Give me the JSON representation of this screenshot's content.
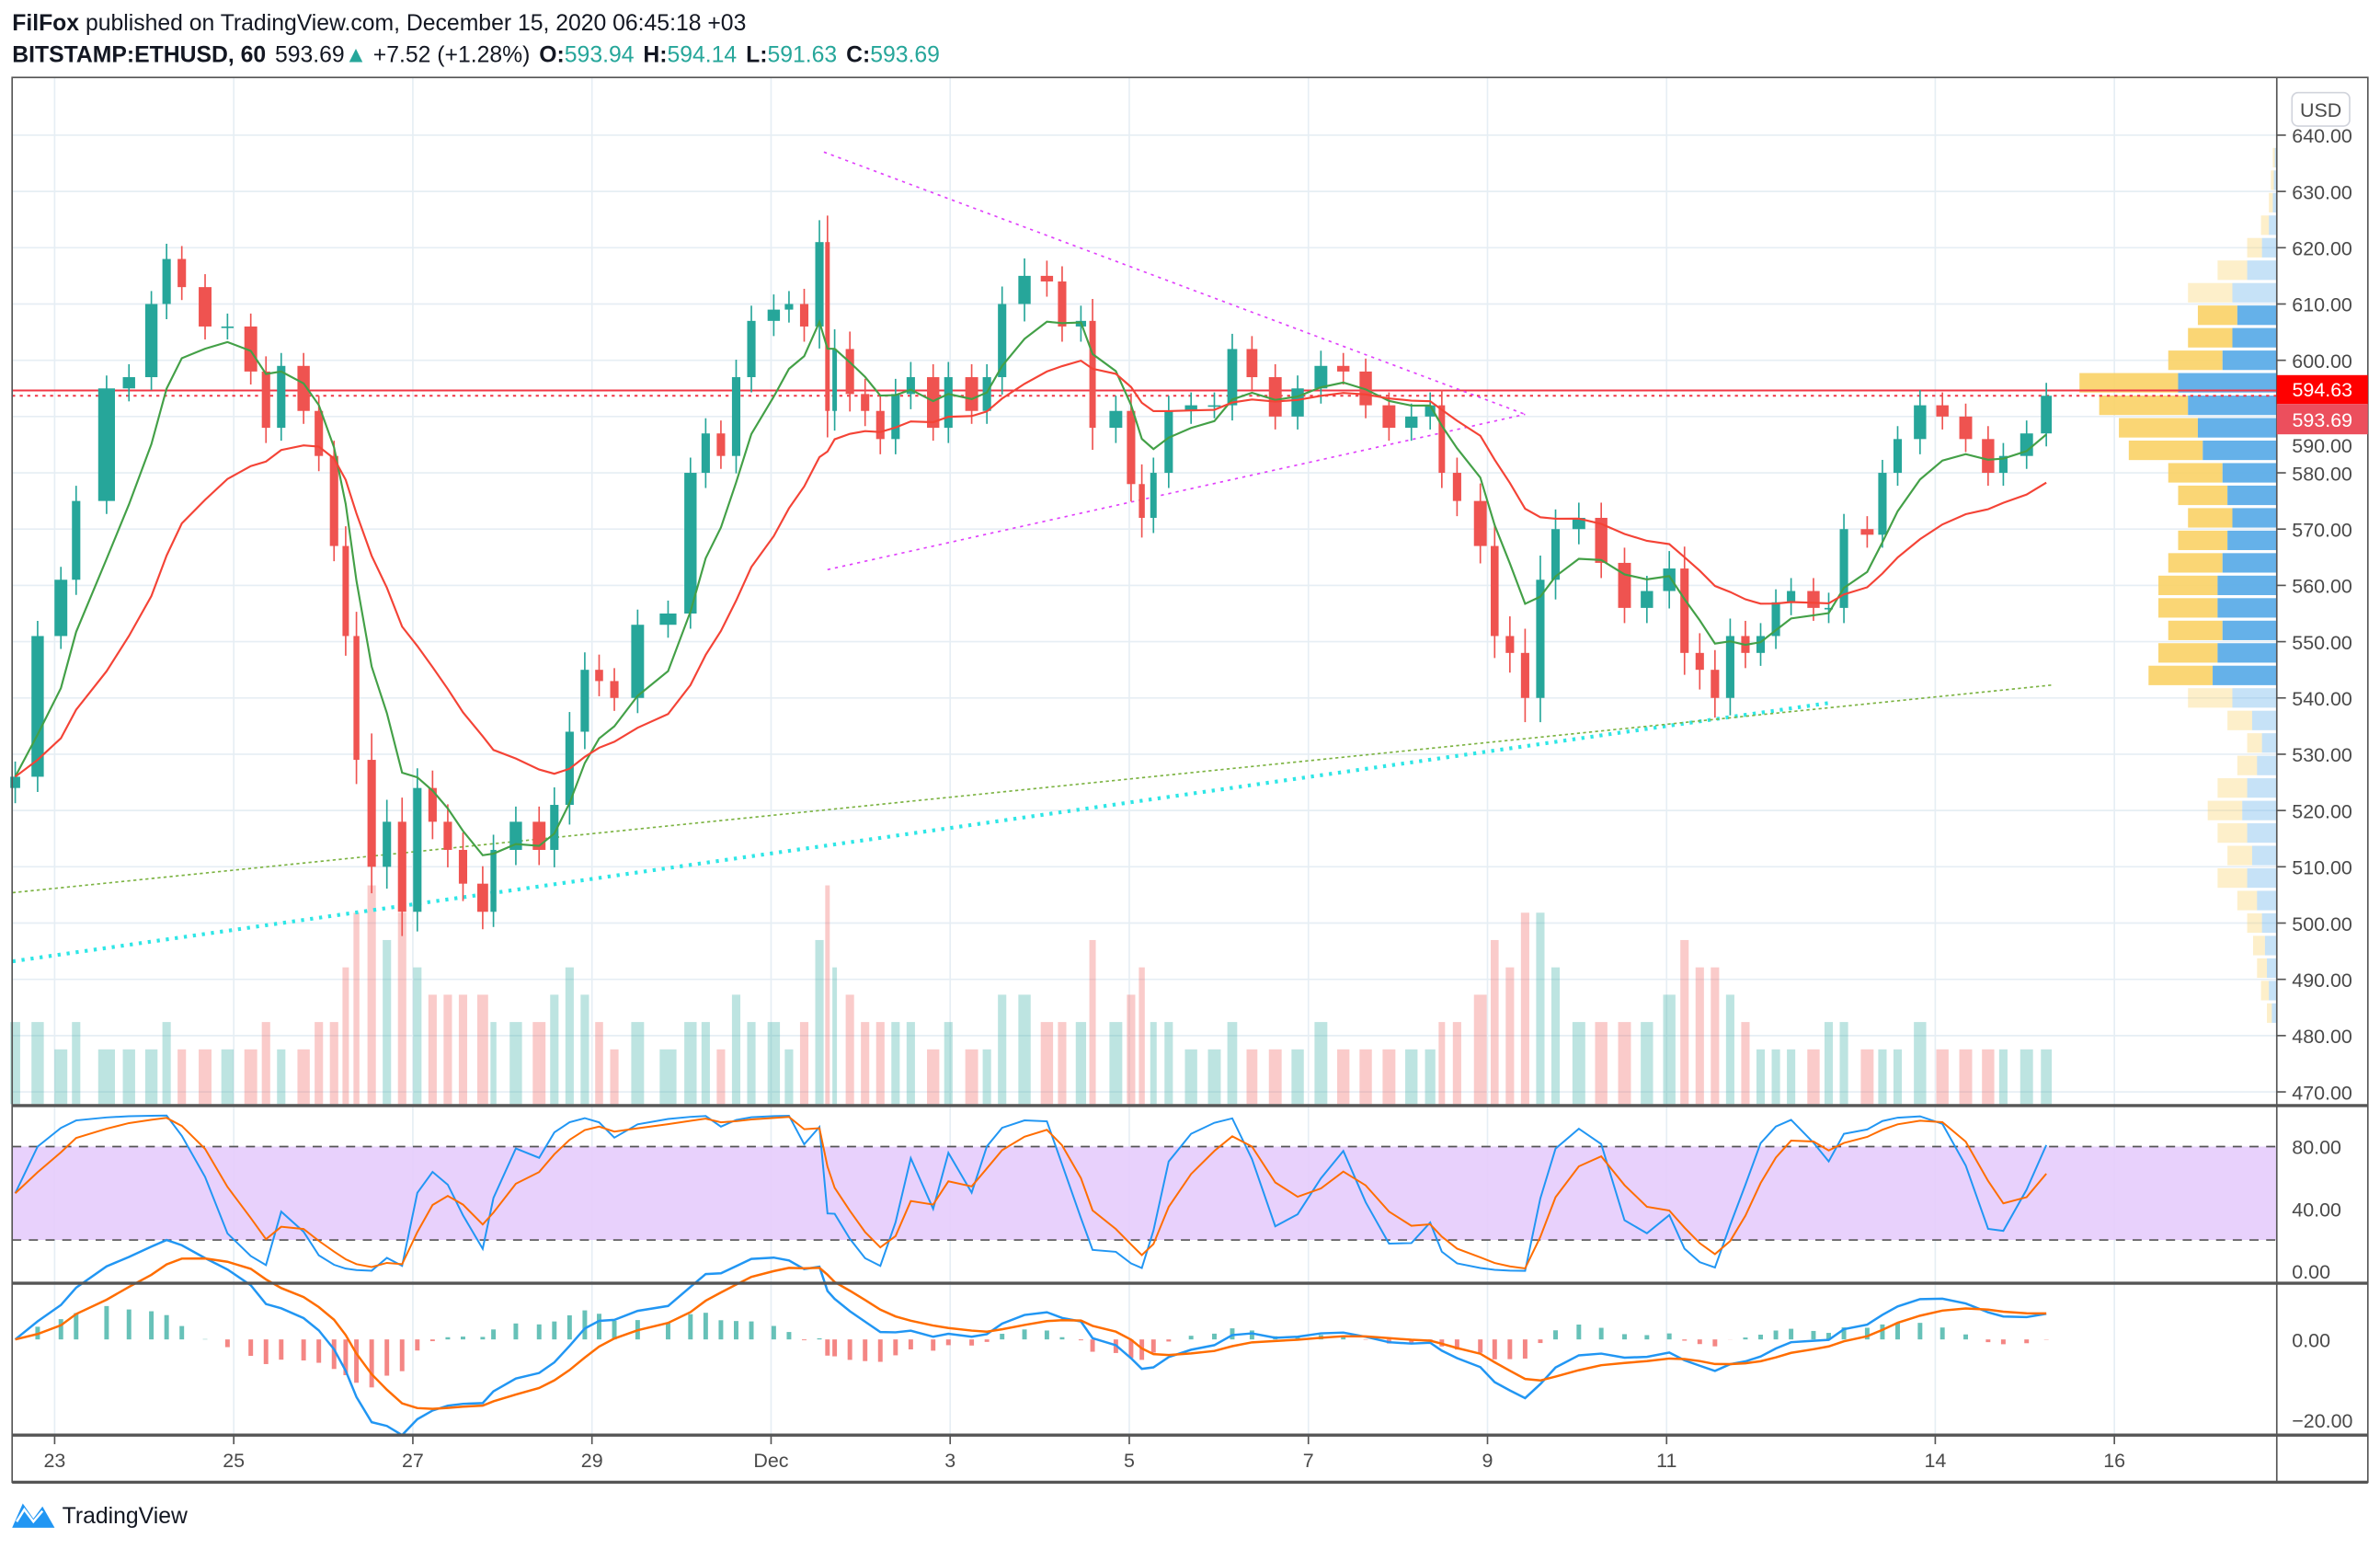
{
  "header": {
    "author": "FilFox",
    "published": "published on TradingView.com, December 15, 2020 06:45:18 +03",
    "symbol": "BITSTAMP:ETHUSD, 60",
    "last": "593.69",
    "change": "+7.52 (+1.28%)",
    "o_label": "O:",
    "o": "593.94",
    "h_label": "H:",
    "h": "594.14",
    "l_label": "L:",
    "l": "591.63",
    "c_label": "C:",
    "c": "593.69"
  },
  "currency_button": "USD",
  "price_tags": {
    "red": "594.63",
    "last": "593.69"
  },
  "brand": "TradingView",
  "colors": {
    "up": "#26a69a",
    "down": "#ef5350",
    "ma_fast": "#43a047",
    "ma_slow": "#f44336",
    "triangle": "#e040fb",
    "support": "#2ee6e6",
    "trend": "#7cb342",
    "stoch_k": "#2196f3",
    "stoch_d": "#ff6d00",
    "band": "#e5ccfc",
    "vp_up": "#5dade8",
    "vp_down": "#f9d166"
  },
  "chart_data": {
    "type": "candlestick",
    "title": "BITSTAMP:ETHUSD, 60",
    "x_unit": "days since 2020-11-23",
    "x_ticks": [
      {
        "t": 0,
        "label": "23"
      },
      {
        "t": 2,
        "label": "25"
      },
      {
        "t": 4,
        "label": "27"
      },
      {
        "t": 6,
        "label": "29"
      },
      {
        "t": 8,
        "label": "Dec"
      },
      {
        "t": 10,
        "label": "3"
      },
      {
        "t": 12,
        "label": "5"
      },
      {
        "t": 14,
        "label": "7"
      },
      {
        "t": 16,
        "label": "9"
      },
      {
        "t": 18,
        "label": "11"
      },
      {
        "t": 21,
        "label": "14"
      },
      {
        "t": 23,
        "label": "16"
      }
    ],
    "y_ticks": [
      "640.00",
      "630.00",
      "620.00",
      "610.00",
      "600.00",
      "590.00",
      "580.00",
      "570.00",
      "560.00",
      "550.00",
      "540.00",
      "530.00",
      "520.00",
      "510.00",
      "500.00",
      "490.00",
      "480.00",
      "470.00"
    ],
    "ylim": [
      470,
      640
    ],
    "points": [
      [
        -0.44,
        526,
        3
      ],
      [
        -0.19,
        551,
        3
      ],
      [
        0.07,
        561,
        2
      ],
      [
        0.24,
        575,
        3
      ],
      [
        0.58,
        595,
        2
      ],
      [
        0.83,
        597,
        2
      ],
      [
        1.08,
        610,
        2
      ],
      [
        1.25,
        618,
        3
      ],
      [
        1.42,
        613,
        2
      ],
      [
        1.68,
        606,
        2
      ],
      [
        1.93,
        606,
        2
      ],
      [
        2.19,
        598,
        2
      ],
      [
        2.36,
        588,
        3
      ],
      [
        2.53,
        599,
        2
      ],
      [
        2.78,
        591,
        2
      ],
      [
        2.95,
        583,
        3
      ],
      [
        3.12,
        567,
        3
      ],
      [
        3.25,
        551,
        5
      ],
      [
        3.37,
        529,
        7
      ],
      [
        3.54,
        510,
        8
      ],
      [
        3.71,
        518,
        6
      ],
      [
        3.88,
        502,
        7
      ],
      [
        4.05,
        524,
        5
      ],
      [
        4.22,
        518,
        4
      ],
      [
        4.39,
        513,
        4
      ],
      [
        4.56,
        507,
        4
      ],
      [
        4.78,
        502,
        4
      ],
      [
        4.9,
        513,
        3
      ],
      [
        5.15,
        518,
        3
      ],
      [
        5.41,
        513,
        3
      ],
      [
        5.58,
        521,
        4
      ],
      [
        5.75,
        534,
        5
      ],
      [
        5.92,
        545,
        4
      ],
      [
        6.08,
        543,
        3
      ],
      [
        6.25,
        540,
        2
      ],
      [
        6.51,
        553,
        3
      ],
      [
        6.85,
        555,
        2
      ],
      [
        7.1,
        580,
        3
      ],
      [
        7.27,
        587,
        3
      ],
      [
        7.44,
        583,
        2
      ],
      [
        7.61,
        597,
        4
      ],
      [
        7.78,
        607,
        3
      ],
      [
        8.03,
        609,
        3
      ],
      [
        8.2,
        610,
        2
      ],
      [
        8.37,
        606,
        3
      ],
      [
        8.54,
        621,
        6
      ],
      [
        8.63,
        591,
        8
      ],
      [
        8.71,
        602,
        5
      ],
      [
        8.88,
        594,
        4
      ],
      [
        9.05,
        591,
        3
      ],
      [
        9.22,
        586,
        3
      ],
      [
        9.39,
        594,
        3
      ],
      [
        9.56,
        597,
        3
      ],
      [
        9.81,
        588,
        2
      ],
      [
        9.98,
        597,
        3
      ],
      [
        10.24,
        591,
        2
      ],
      [
        10.41,
        597,
        2
      ],
      [
        10.58,
        610,
        4
      ],
      [
        10.83,
        615,
        4
      ],
      [
        11.08,
        614,
        3
      ],
      [
        11.25,
        606,
        3
      ],
      [
        11.46,
        607,
        3
      ],
      [
        11.59,
        588,
        6
      ],
      [
        11.85,
        591,
        3
      ],
      [
        12.02,
        578,
        4
      ],
      [
        12.14,
        572,
        5
      ],
      [
        12.27,
        580,
        3
      ],
      [
        12.44,
        591,
        3
      ],
      [
        12.69,
        592,
        2
      ],
      [
        12.95,
        592,
        2
      ],
      [
        13.15,
        602,
        3
      ],
      [
        13.37,
        597,
        2
      ],
      [
        13.63,
        590,
        2
      ],
      [
        13.88,
        595,
        2
      ],
      [
        14.14,
        599,
        3
      ],
      [
        14.39,
        598,
        2
      ],
      [
        14.64,
        592,
        2
      ],
      [
        14.9,
        588,
        2
      ],
      [
        15.15,
        590,
        2
      ],
      [
        15.36,
        592,
        2
      ],
      [
        15.49,
        580,
        3
      ],
      [
        15.66,
        575,
        3
      ],
      [
        15.92,
        567,
        4
      ],
      [
        16.08,
        551,
        6
      ],
      [
        16.25,
        548,
        5
      ],
      [
        16.42,
        540,
        7
      ],
      [
        16.59,
        561,
        7
      ],
      [
        16.76,
        570,
        5
      ],
      [
        17.02,
        572,
        3
      ],
      [
        17.27,
        564,
        3
      ],
      [
        17.53,
        556,
        3
      ],
      [
        17.78,
        559,
        3
      ],
      [
        18.03,
        563,
        4
      ],
      [
        18.2,
        548,
        6
      ],
      [
        18.37,
        545,
        5
      ],
      [
        18.54,
        540,
        5
      ],
      [
        18.71,
        551,
        4
      ],
      [
        18.88,
        548,
        3
      ],
      [
        19.05,
        551,
        2
      ],
      [
        19.22,
        557,
        2
      ],
      [
        19.39,
        559,
        2
      ],
      [
        19.64,
        556,
        2
      ],
      [
        19.81,
        556,
        3
      ],
      [
        19.98,
        570,
        3
      ],
      [
        20.24,
        569,
        2
      ],
      [
        20.41,
        580,
        2
      ],
      [
        20.58,
        586,
        2
      ],
      [
        20.83,
        592,
        3
      ],
      [
        21.08,
        590,
        2
      ],
      [
        21.34,
        586,
        2
      ],
      [
        21.59,
        580,
        2
      ],
      [
        21.76,
        583,
        2
      ],
      [
        22.02,
        587,
        2
      ],
      [
        22.24,
        593.69,
        2
      ]
    ],
    "horizontal_lines": [
      {
        "price": 594.63,
        "style": "solid"
      },
      {
        "price": 593.69,
        "style": "dotted"
      }
    ],
    "trendlines": [
      {
        "name": "triangle-upper",
        "from": [
          8.59,
          637
        ],
        "to": [
          16.42,
          590.4
        ]
      },
      {
        "name": "triangle-lower",
        "from": [
          8.63,
          562.8
        ],
        "to": [
          16.42,
          590.4
        ]
      },
      {
        "name": "support-cyan",
        "from": [
          -0.47,
          493.2
        ],
        "to": [
          19.81,
          539.1
        ]
      },
      {
        "name": "trend-green",
        "from": [
          -0.47,
          505.4
        ],
        "to": [
          22.31,
          542.3
        ]
      }
    ],
    "volume_profile": {
      "value_area": [
        542,
        609
      ],
      "rows": [
        [
          484,
          0.05
        ],
        [
          488,
          0.08
        ],
        [
          492,
          0.1
        ],
        [
          496,
          0.12
        ],
        [
          500,
          0.15
        ],
        [
          504,
          0.2
        ],
        [
          508,
          0.3
        ],
        [
          512,
          0.25
        ],
        [
          516,
          0.3
        ],
        [
          520,
          0.35
        ],
        [
          524,
          0.3
        ],
        [
          528,
          0.2
        ],
        [
          532,
          0.15
        ],
        [
          536,
          0.25
        ],
        [
          540,
          0.45
        ],
        [
          544,
          0.65
        ],
        [
          548,
          0.6
        ],
        [
          552,
          0.55
        ],
        [
          556,
          0.6
        ],
        [
          560,
          0.6
        ],
        [
          564,
          0.55
        ],
        [
          568,
          0.5
        ],
        [
          572,
          0.45
        ],
        [
          576,
          0.5
        ],
        [
          580,
          0.55
        ],
        [
          584,
          0.75
        ],
        [
          588,
          0.8
        ],
        [
          592,
          0.9
        ],
        [
          596,
          1.0
        ],
        [
          600,
          0.55
        ],
        [
          604,
          0.45
        ],
        [
          608,
          0.4
        ],
        [
          612,
          0.45
        ],
        [
          616,
          0.3
        ],
        [
          620,
          0.15
        ],
        [
          624,
          0.08
        ],
        [
          628,
          0.04
        ],
        [
          632,
          0.03
        ],
        [
          636,
          0.02
        ]
      ]
    },
    "stoch": {
      "levels": [
        "80.00",
        "40.00",
        "0.00"
      ],
      "band": [
        20,
        80
      ]
    },
    "macd": {
      "levels": [
        "0.00",
        "−20.00"
      ]
    }
  }
}
